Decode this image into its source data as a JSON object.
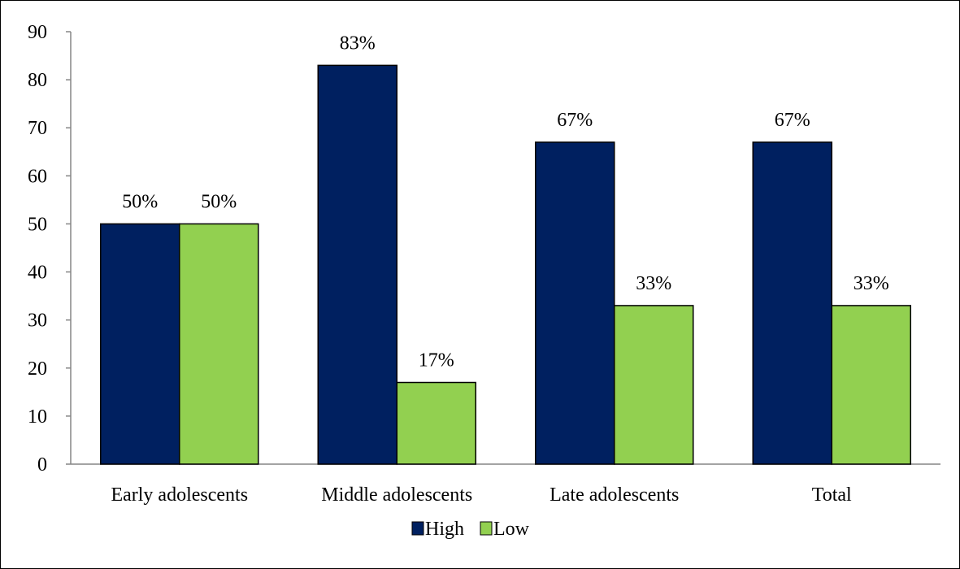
{
  "chart_data": {
    "type": "bar",
    "title": "",
    "xlabel": "",
    "ylabel": "",
    "categories": [
      "Early adolescents",
      "Middle adolescents",
      "Late adolescents",
      "Total"
    ],
    "series": [
      {
        "name": "High",
        "values": [
          50,
          83,
          67,
          67
        ],
        "labels": [
          "50%",
          "83%",
          "67%",
          "67%"
        ],
        "color": "#002060"
      },
      {
        "name": "Low",
        "values": [
          50,
          17,
          33,
          33
        ],
        "labels": [
          "50%",
          "17%",
          "33%",
          "33%"
        ],
        "color": "#92D050"
      }
    ],
    "ylim": [
      0,
      90
    ],
    "yticks": [
      0,
      10,
      20,
      30,
      40,
      50,
      60,
      70,
      80,
      90
    ],
    "grid": false,
    "legend": "bottom-center"
  }
}
